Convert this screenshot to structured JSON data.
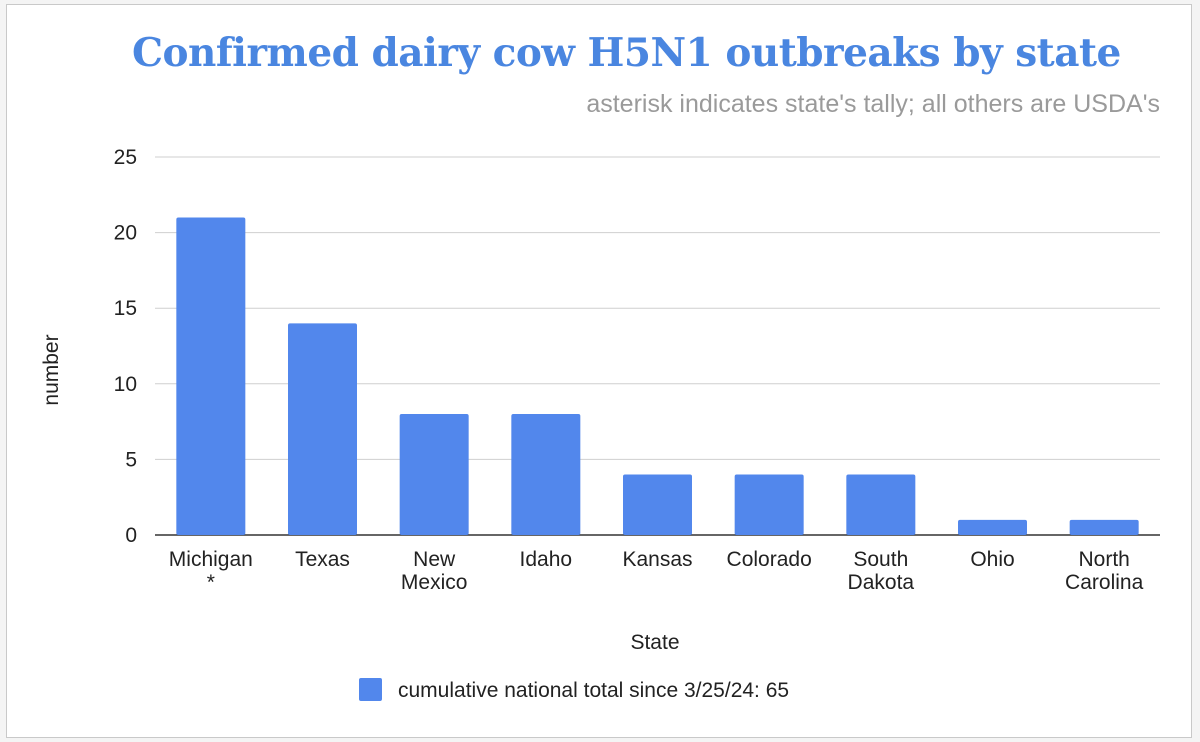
{
  "chart_data": {
    "type": "bar",
    "title": "Confirmed dairy cow H5N1 outbreaks by state",
    "subtitle": "asterisk indicates state's tally; all others are USDA's",
    "xlabel": "State",
    "ylabel": "number",
    "ylim": [
      0,
      25
    ],
    "yticks": [
      0,
      5,
      10,
      15,
      20,
      25
    ],
    "grid": true,
    "legend_position": "bottom",
    "categories": [
      [
        "Michigan",
        "*"
      ],
      [
        "Texas"
      ],
      [
        "New",
        "Mexico"
      ],
      [
        "Idaho"
      ],
      [
        "Kansas"
      ],
      [
        "Colorado"
      ],
      [
        "South",
        "Dakota"
      ],
      [
        "Ohio"
      ],
      [
        "North",
        "Carolina"
      ]
    ],
    "series": [
      {
        "name": "cumulative national total since 3/25/24: 65",
        "color": "#5287ec",
        "values": [
          21,
          14,
          8,
          8,
          4,
          4,
          4,
          1,
          1
        ]
      }
    ]
  }
}
